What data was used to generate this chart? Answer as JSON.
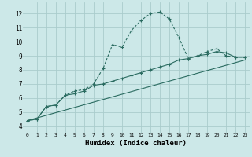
{
  "xlabel": "Humidex (Indice chaleur)",
  "background_color": "#cce8e8",
  "grid_color": "#aacccc",
  "line_color": "#2a6b60",
  "xlim": [
    -0.5,
    23.5
  ],
  "ylim": [
    3.5,
    12.8
  ],
  "xticks": [
    0,
    1,
    2,
    3,
    4,
    5,
    6,
    7,
    8,
    9,
    10,
    11,
    12,
    13,
    14,
    15,
    16,
    17,
    18,
    19,
    20,
    21,
    22,
    23
  ],
  "yticks": [
    4,
    5,
    6,
    7,
    8,
    9,
    10,
    11,
    12
  ],
  "line1_x": [
    0,
    1,
    2,
    3,
    4,
    5,
    6,
    7,
    8,
    9,
    10,
    11,
    12,
    13,
    14,
    15,
    16,
    17,
    18,
    19,
    20,
    21,
    22,
    23
  ],
  "line1_y": [
    4.4,
    4.5,
    5.4,
    5.5,
    6.2,
    6.5,
    6.6,
    7.0,
    8.1,
    9.8,
    9.6,
    10.8,
    11.5,
    12.0,
    12.1,
    11.6,
    10.3,
    8.8,
    9.0,
    9.3,
    9.5,
    9.0,
    8.9,
    8.9
  ],
  "line2_x": [
    0,
    1,
    2,
    3,
    4,
    5,
    6,
    7,
    8,
    9,
    10,
    11,
    12,
    13,
    14,
    15,
    16,
    17,
    18,
    19,
    20,
    21,
    22,
    23
  ],
  "line2_y": [
    4.4,
    4.5,
    5.4,
    5.5,
    6.2,
    6.3,
    6.5,
    6.9,
    7.0,
    7.2,
    7.4,
    7.6,
    7.8,
    8.0,
    8.2,
    8.4,
    8.7,
    8.8,
    9.0,
    9.1,
    9.3,
    9.2,
    8.9,
    8.9
  ],
  "line3_x": [
    0,
    23
  ],
  "line3_y": [
    4.4,
    8.7
  ]
}
